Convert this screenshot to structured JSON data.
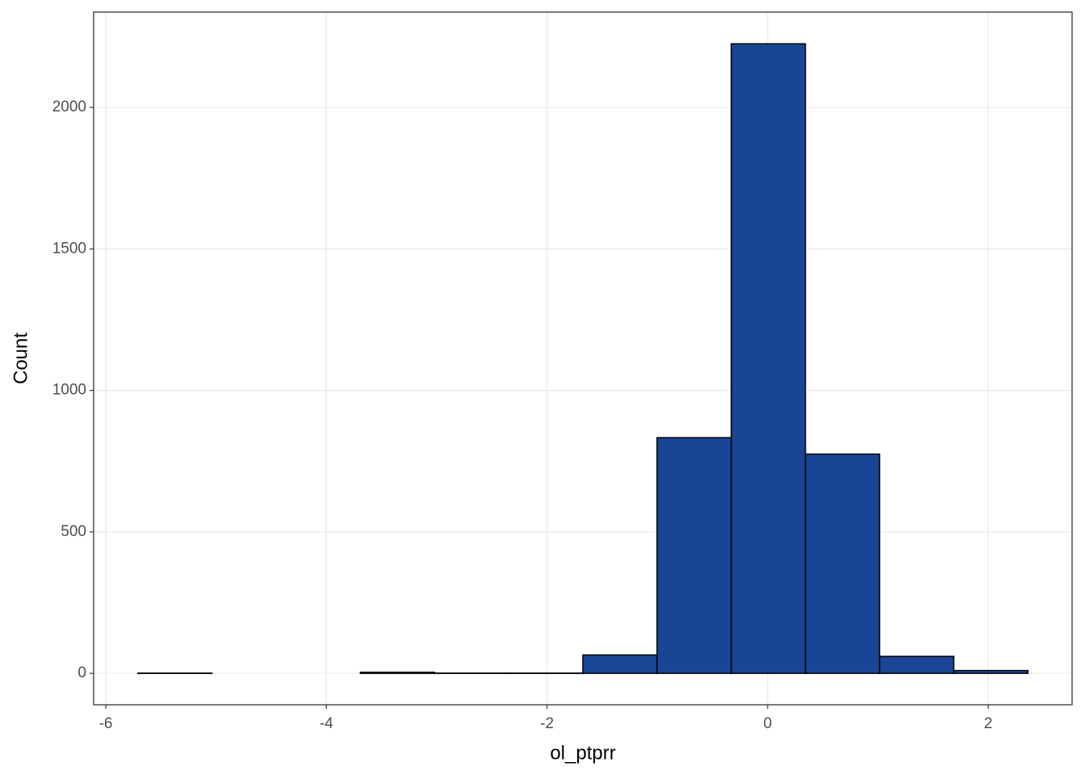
{
  "chart_data": {
    "type": "histogram",
    "x_label": "ol_ptprr",
    "y_label": "Count",
    "bins": [
      -5.71,
      -5.0375,
      -4.365,
      -3.6925,
      -3.02,
      -2.3475,
      -1.675,
      -1.0025,
      -0.33,
      0.3425,
      1.015,
      1.6875,
      2.36
    ],
    "values": [
      1,
      0,
      0,
      4,
      1,
      1,
      65,
      833,
      2225,
      775,
      60,
      10
    ],
    "color": "#1a4496",
    "edge_color": "#000000",
    "xlim": [
      -6.11,
      2.76
    ],
    "xticks": [
      -6,
      -4,
      -2,
      0,
      2
    ],
    "ylim": [
      -111,
      2337
    ],
    "yticks": [
      0,
      500,
      1000,
      1500,
      2000
    ],
    "grid": true
  }
}
